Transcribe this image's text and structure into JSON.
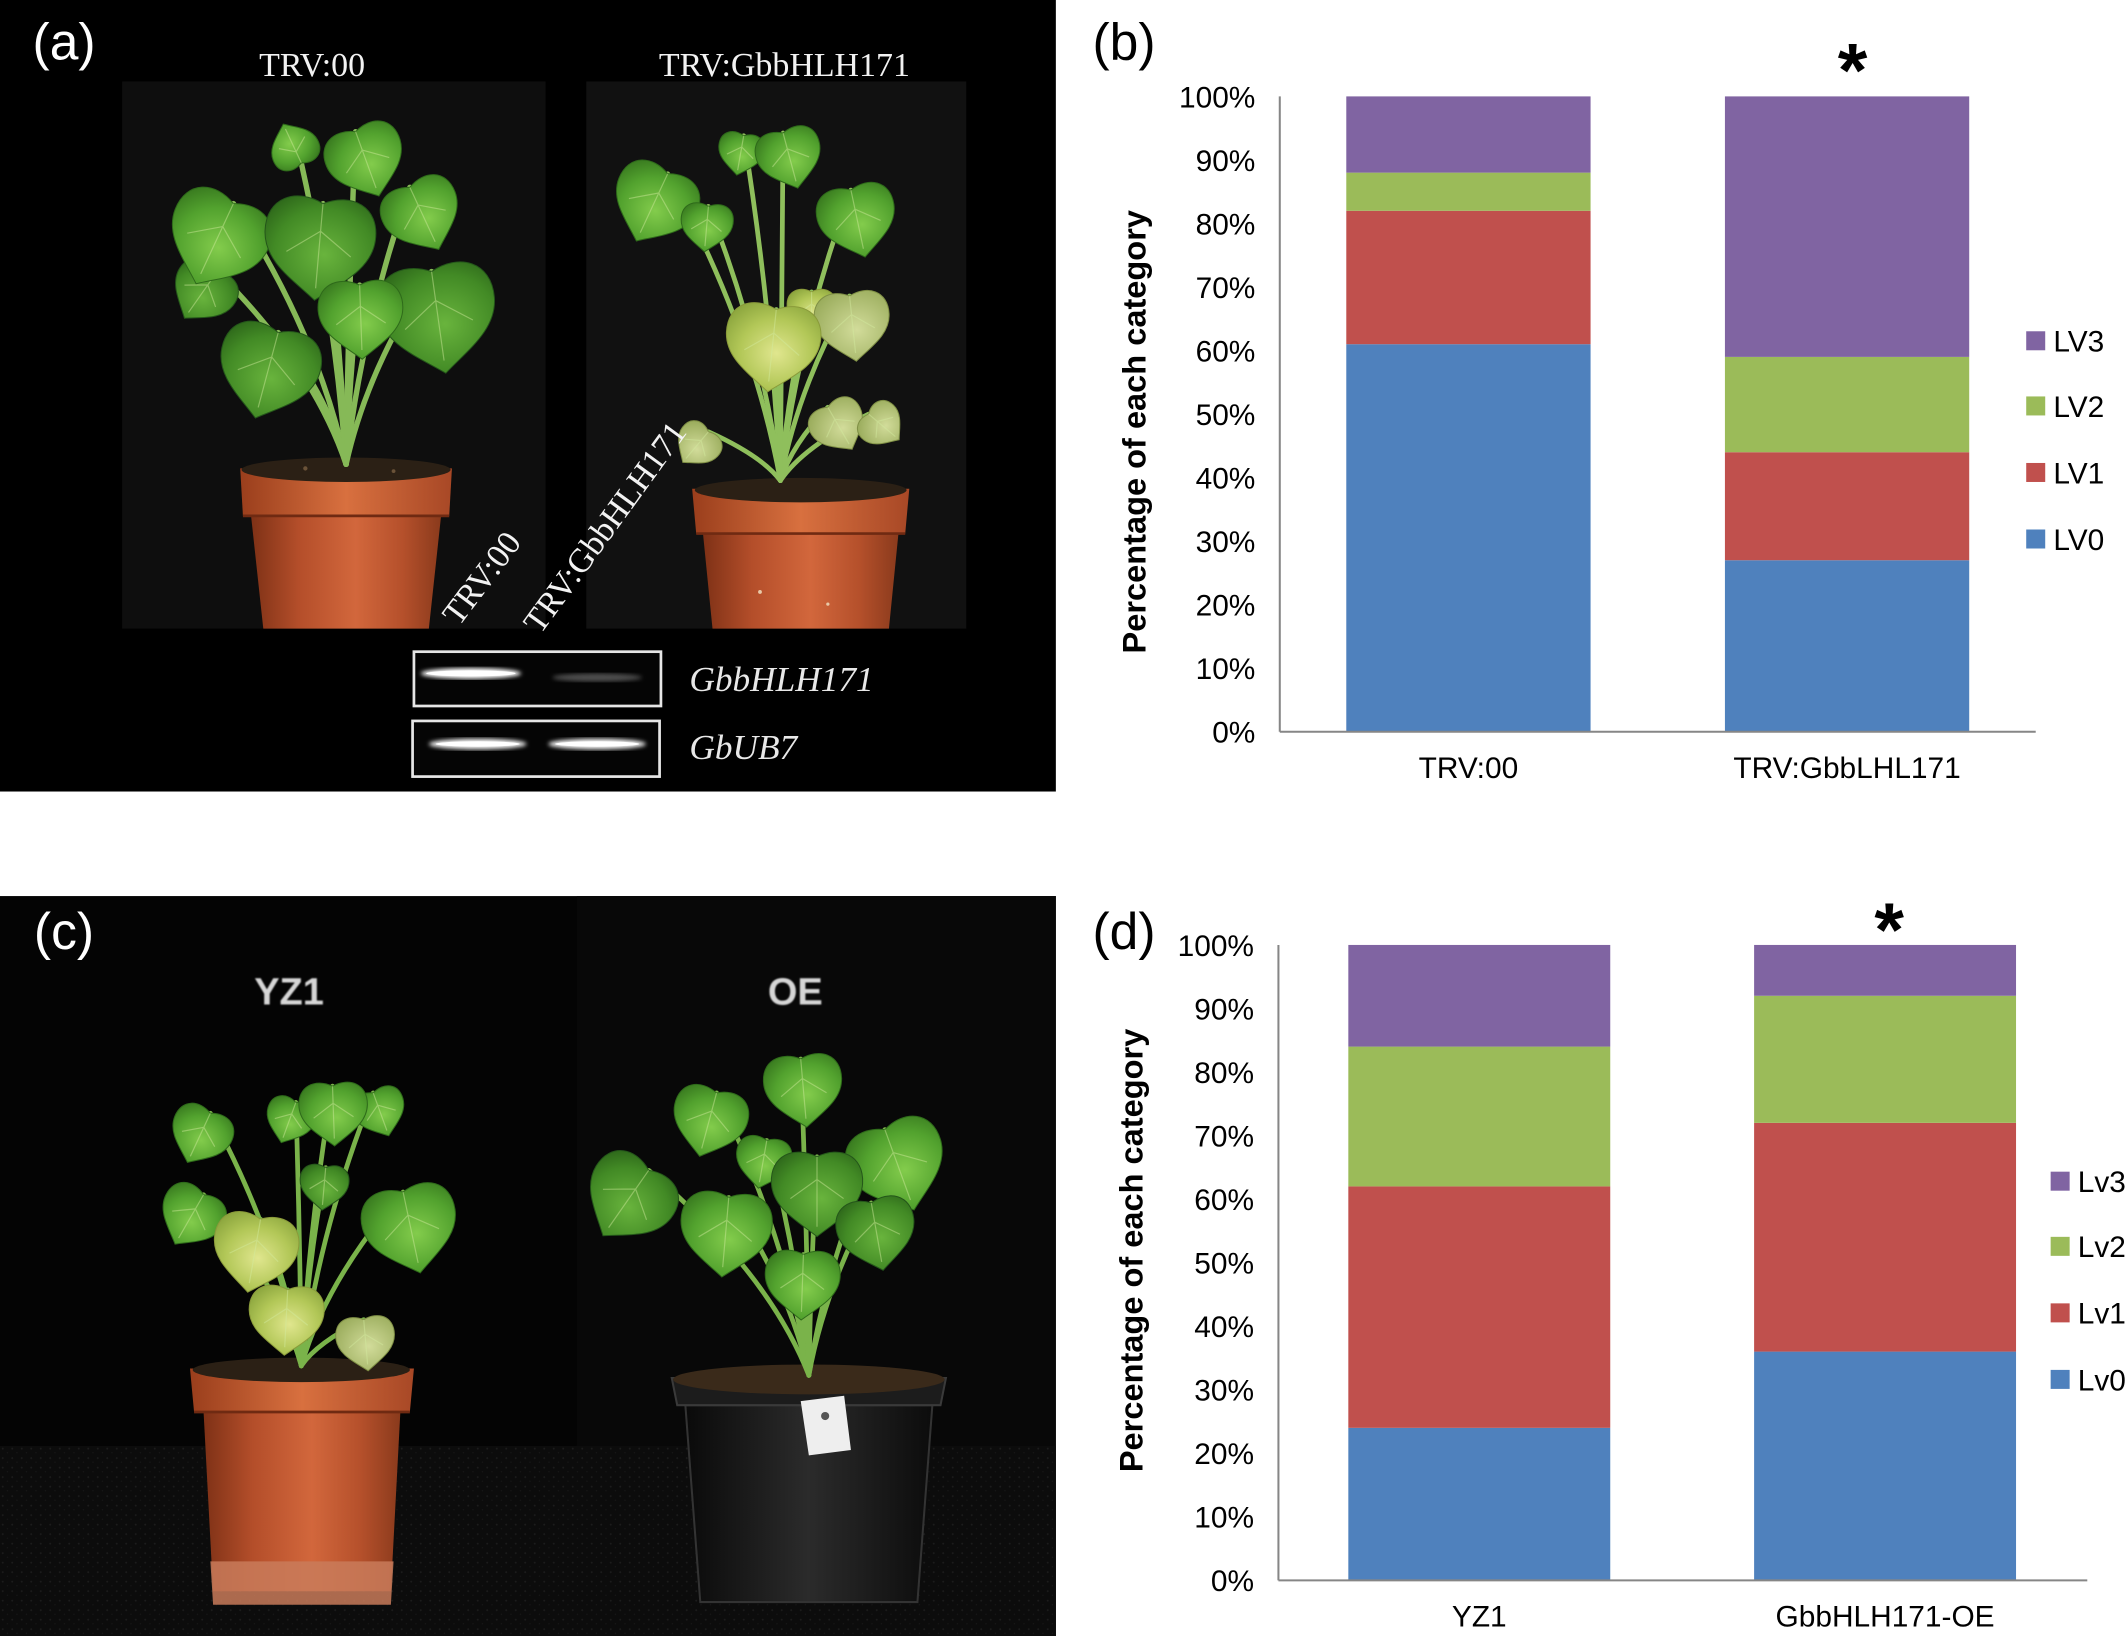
{
  "panel_a": {
    "label": "(a)",
    "title_left": "TRV:00",
    "title_right": "TRV:GbbHLH171",
    "lane_label_1": "TRV:00",
    "lane_label_2": "TRV:GbbHLH171",
    "gel_label_1": "GbbHLH171",
    "gel_label_2": "GbUB7"
  },
  "panel_b": {
    "label": "(b)"
  },
  "panel_c": {
    "label": "(c)",
    "title_left": "YZ1",
    "title_right": "OE"
  },
  "panel_d": {
    "label": "(d)"
  },
  "chart_data": [
    {
      "type": "bar",
      "stacked": true,
      "categories": [
        "TRV:00",
        "TRV:GbbLHL171"
      ],
      "series": [
        {
          "name": "LV0",
          "values": [
            61,
            27
          ],
          "color": "#4F81BD"
        },
        {
          "name": "LV1",
          "values": [
            21,
            17
          ],
          "color": "#C0504D"
        },
        {
          "name": "LV2",
          "values": [
            6,
            15
          ],
          "color": "#9BBB59"
        },
        {
          "name": "LV3",
          "values": [
            12,
            41
          ],
          "color": "#8064A2"
        }
      ],
      "ylabel": "Percentage of each category",
      "ylim": [
        0,
        100
      ],
      "yticks": [
        "0%",
        "10%",
        "20%",
        "30%",
        "40%",
        "50%",
        "60%",
        "70%",
        "80%",
        "90%",
        "100%"
      ],
      "grid": false,
      "legend": "right",
      "annotations": [
        {
          "text": "*",
          "category": "TRV:GbbLHL171"
        }
      ]
    },
    {
      "type": "bar",
      "stacked": true,
      "categories": [
        "YZ1",
        "GbbHLH171-OE"
      ],
      "series": [
        {
          "name": "Lv0",
          "values": [
            24,
            36
          ],
          "color": "#4F81BD"
        },
        {
          "name": "Lv1",
          "values": [
            38,
            36
          ],
          "color": "#C0504D"
        },
        {
          "name": "Lv2",
          "values": [
            22,
            20
          ],
          "color": "#9BBB59"
        },
        {
          "name": "Lv3",
          "values": [
            16,
            8
          ],
          "color": "#8064A2"
        }
      ],
      "ylabel": "Percentage of each category",
      "ylim": [
        0,
        100
      ],
      "yticks": [
        "0%",
        "10%",
        "20%",
        "30%",
        "40%",
        "50%",
        "60%",
        "70%",
        "80%",
        "90%",
        "100%"
      ],
      "grid": false,
      "legend": "right",
      "annotations": [
        {
          "text": "*",
          "category": "GbbHLH171-OE"
        }
      ]
    }
  ]
}
